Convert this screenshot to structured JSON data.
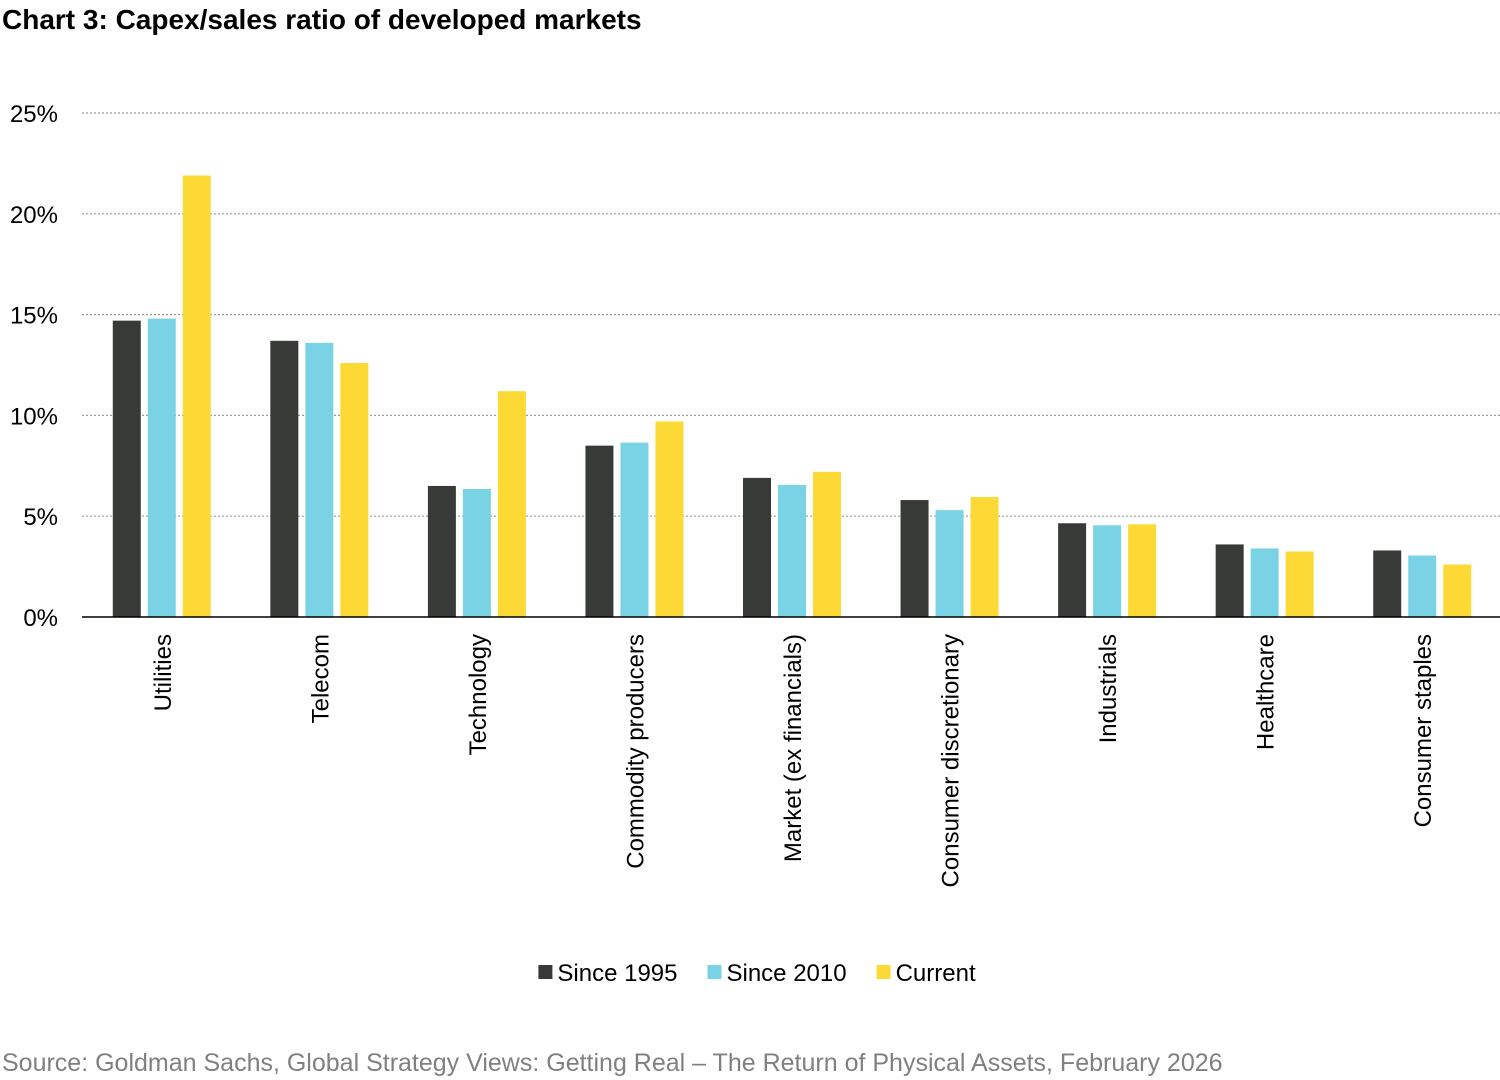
{
  "title": "Chart 3: Capex/sales ratio of developed markets",
  "source": "Source: Goldman Sachs, Global Strategy Views: Getting Real – The Return of Physical Assets, February 2026",
  "chart_data": {
    "type": "bar",
    "title": "Chart 3: Capex/sales ratio of developed markets",
    "xlabel": "",
    "ylabel": "",
    "ylim": [
      0,
      25
    ],
    "yticks": [
      0,
      5,
      10,
      15,
      20,
      25
    ],
    "ytick_labels": [
      "0%",
      "5%",
      "10%",
      "15%",
      "20%",
      "25%"
    ],
    "grid": true,
    "legend_position": "bottom",
    "categories": [
      "Utilities",
      "Telecom",
      "Technology",
      "Commodity producers",
      "Market (ex financials)",
      "Consumer discretionary",
      "Industrials",
      "Healthcare",
      "Consumer staples"
    ],
    "series": [
      {
        "name": "Since 1995",
        "color": "#383a38",
        "values": [
          14.7,
          13.7,
          6.5,
          8.5,
          6.9,
          5.8,
          4.65,
          3.6,
          3.3
        ]
      },
      {
        "name": "Since 2010",
        "color": "#7ad2e5",
        "values": [
          14.8,
          13.6,
          6.35,
          8.65,
          6.55,
          5.3,
          4.55,
          3.4,
          3.05
        ]
      },
      {
        "name": "Current",
        "color": "#fcd935",
        "values": [
          21.9,
          12.6,
          11.2,
          9.7,
          7.2,
          5.95,
          4.6,
          3.25,
          2.6
        ]
      }
    ]
  }
}
